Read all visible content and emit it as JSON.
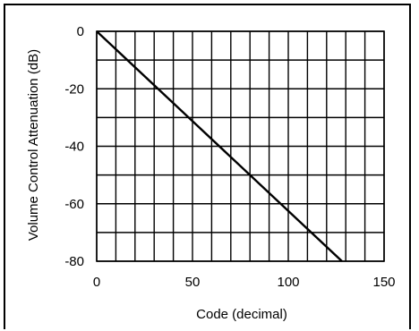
{
  "chart_data": {
    "type": "line",
    "title": "",
    "xlabel": "Code (decimal)",
    "ylabel": "Volume Control Attenuation (dB)",
    "xlim": [
      0,
      150
    ],
    "ylim": [
      -80,
      0
    ],
    "x_ticks": [
      0,
      50,
      100,
      150
    ],
    "y_ticks": [
      0,
      -20,
      -40,
      -60,
      -80
    ],
    "x_gridlines": [
      0,
      10,
      20,
      30,
      40,
      50,
      60,
      70,
      80,
      90,
      100,
      110,
      120,
      130,
      140,
      150
    ],
    "y_gridlines": [
      0,
      -10,
      -20,
      -30,
      -40,
      -50,
      -60,
      -70,
      -80
    ],
    "grid": true,
    "series": [
      {
        "x": [
          0,
          128
        ],
        "y": [
          0,
          -80
        ]
      }
    ],
    "colors": {
      "line": "#000000",
      "grid": "#000000",
      "background": "#ffffff"
    }
  }
}
